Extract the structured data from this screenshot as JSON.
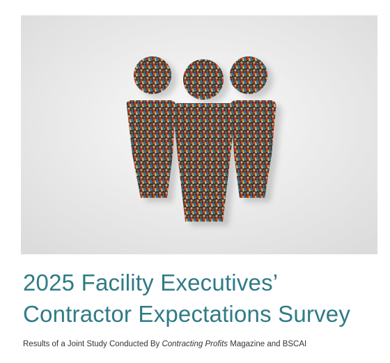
{
  "title": {
    "line1": "2025 Facility Executives’",
    "line2": "Contractor Expectations Survey"
  },
  "subtitle": {
    "before": "Results of a Joint Study Conducted By ",
    "italic": "Contracting Profits",
    "after": " Magazine and BSCAI"
  }
}
